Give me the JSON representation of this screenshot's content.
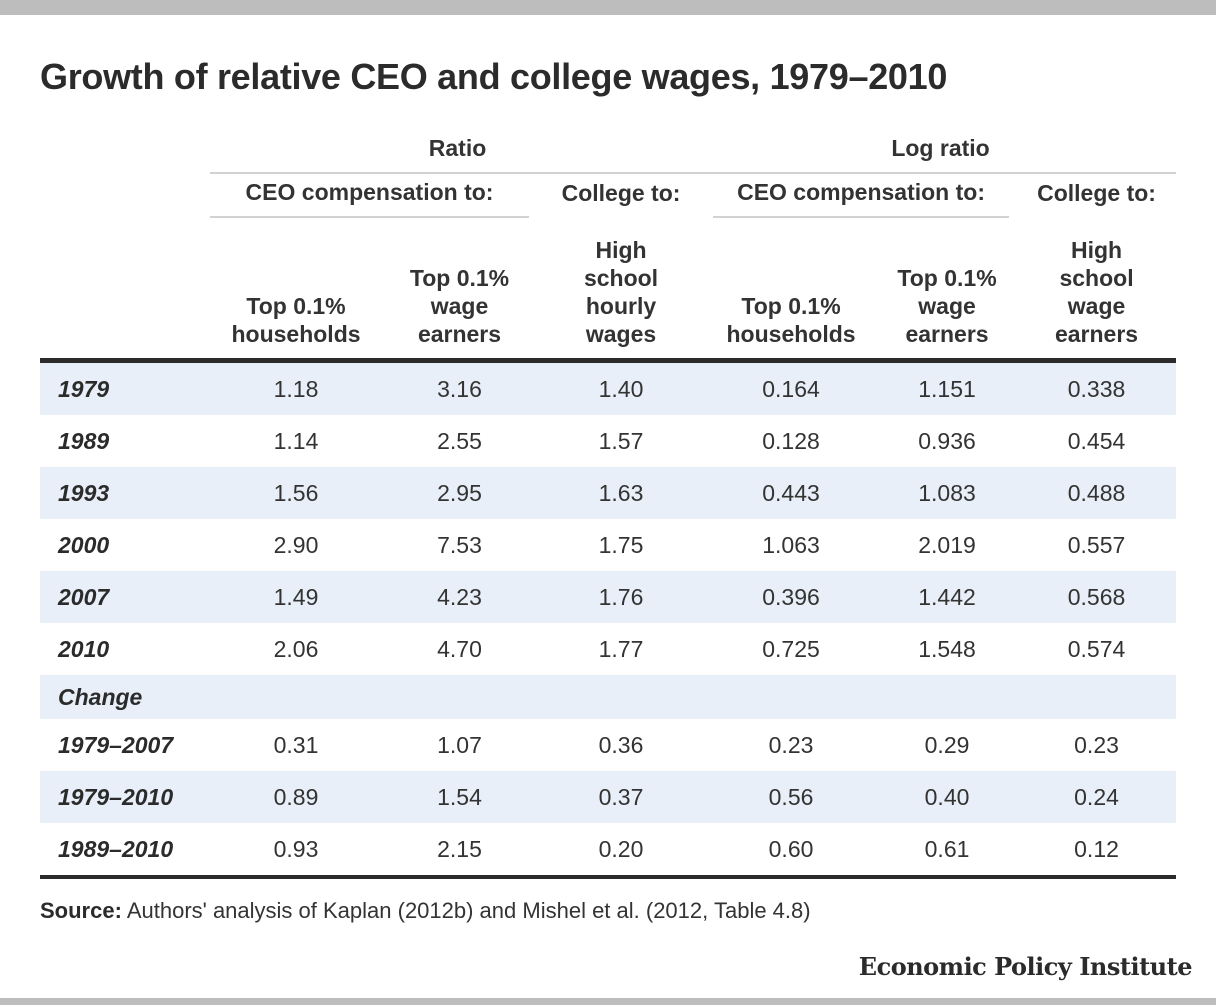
{
  "title": "Growth of relative CEO and college wages, 1979–2010",
  "headers": {
    "group_ratio": "Ratio",
    "group_log_ratio": "Log ratio",
    "sub_ceo_ratio": "CEO compensation to:",
    "sub_college_ratio": "College to:",
    "sub_ceo_log": "CEO compensation to:",
    "sub_college_log": "College to:",
    "columns": [
      [
        "Top 0.1%",
        "households"
      ],
      [
        "Top 0.1%",
        "wage",
        "earners"
      ],
      [
        "High",
        "school",
        "hourly",
        "wages"
      ],
      [
        "Top 0.1%",
        "households"
      ],
      [
        "Top 0.1%",
        "wage",
        "earners"
      ],
      [
        "High",
        "school",
        "wage",
        "earners"
      ]
    ]
  },
  "section_label": "Change",
  "source_prefix": "Source:",
  "source_text": " Authors' analysis of Kaplan (2012b) and Mishel et al. (2012, Table 4.8)",
  "brand": "Economic Policy Institute",
  "colors": {
    "row_shade": "#e8eff8",
    "rule": "#2b2b2b",
    "divider": "#d2d2d2"
  },
  "chart_data": {
    "type": "table",
    "title": "Growth of relative CEO and college wages, 1979–2010",
    "columns": [
      "Ratio — CEO compensation to: Top 0.1% households",
      "Ratio — CEO compensation to: Top 0.1% wage earners",
      "Ratio — College to: High school hourly wages",
      "Log ratio — CEO compensation to: Top 0.1% households",
      "Log ratio — CEO compensation to: Top 0.1% wage earners",
      "Log ratio — College to: High school wage earners"
    ],
    "rows": [
      {
        "label": "1979",
        "values": [
          "1.18",
          "3.16",
          "1.40",
          "0.164",
          "1.151",
          "0.338"
        ]
      },
      {
        "label": "1989",
        "values": [
          "1.14",
          "2.55",
          "1.57",
          "0.128",
          "0.936",
          "0.454"
        ]
      },
      {
        "label": "1993",
        "values": [
          "1.56",
          "2.95",
          "1.63",
          "0.443",
          "1.083",
          "0.488"
        ]
      },
      {
        "label": "2000",
        "values": [
          "2.90",
          "7.53",
          "1.75",
          "1.063",
          "2.019",
          "0.557"
        ]
      },
      {
        "label": "2007",
        "values": [
          "1.49",
          "4.23",
          "1.76",
          "0.396",
          "1.442",
          "0.568"
        ]
      },
      {
        "label": "2010",
        "values": [
          "2.06",
          "4.70",
          "1.77",
          "0.725",
          "1.548",
          "0.574"
        ]
      }
    ],
    "change_rows": [
      {
        "label": "1979–2007",
        "values": [
          "0.31",
          "1.07",
          "0.36",
          "0.23",
          "0.29",
          "0.23"
        ]
      },
      {
        "label": "1979–2010",
        "values": [
          "0.89",
          "1.54",
          "0.37",
          "0.56",
          "0.40",
          "0.24"
        ]
      },
      {
        "label": "1989–2010",
        "values": [
          "0.93",
          "2.15",
          "0.20",
          "0.60",
          "0.61",
          "0.12"
        ]
      }
    ]
  }
}
